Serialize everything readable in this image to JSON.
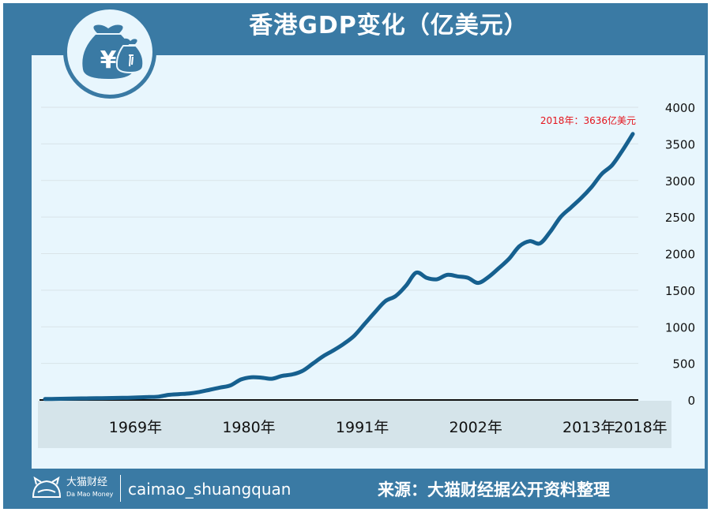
{
  "header": {
    "title": "香港GDP变化（亿美元）"
  },
  "badge": {
    "icon": "money-bag-icon",
    "symbol": "¥"
  },
  "footer": {
    "brand_cn": "大猫财经",
    "brand_en": "Da Mao Money",
    "handle": "caimao_shuangquan",
    "source": "来源：大猫财经据公开资料整理"
  },
  "colors": {
    "frame": "#3a7aa4",
    "panel": "#e8f6fd",
    "line": "#16608f",
    "annotation": "#e4141d"
  },
  "chart_data": {
    "type": "line",
    "title": "香港GDP变化（亿美元）",
    "xlabel": "",
    "ylabel": "",
    "ylim": [
      0,
      4000
    ],
    "xlim": [
      1961,
      2018
    ],
    "grid": true,
    "legend": "none",
    "y_ticks": [
      "0",
      "500",
      "1000",
      "1500",
      "2000",
      "2500",
      "3000",
      "3500",
      "4000"
    ],
    "x_ticks": [
      {
        "year": 1969,
        "label": "1969年"
      },
      {
        "year": 1980,
        "label": "1980年"
      },
      {
        "year": 1991,
        "label": "1991年"
      },
      {
        "year": 2002,
        "label": "2002年"
      },
      {
        "year": 2013,
        "label": "2013年"
      },
      {
        "year": 2018,
        "label": "2018年"
      }
    ],
    "annotation": {
      "year": 2018,
      "value": 3636,
      "text": "2018年：3636亿美元"
    },
    "series": [
      {
        "x": [
          1961,
          1962,
          1963,
          1964,
          1965,
          1966,
          1967,
          1968,
          1969,
          1970,
          1971,
          1972,
          1973,
          1974,
          1975,
          1976,
          1977,
          1978,
          1979,
          1980,
          1981,
          1982,
          1983,
          1984,
          1985,
          1986,
          1987,
          1988,
          1989,
          1990,
          1991,
          1992,
          1993,
          1994,
          1995,
          1996,
          1997,
          1998,
          1999,
          2000,
          2001,
          2002,
          2003,
          2004,
          2005,
          2006,
          2007,
          2008,
          2009,
          2010,
          2011,
          2012,
          2013,
          2014,
          2015,
          2016,
          2017,
          2018
        ],
        "values": [
          13,
          15,
          17,
          20,
          22,
          24,
          26,
          28,
          30,
          35,
          40,
          45,
          70,
          80,
          90,
          110,
          140,
          170,
          200,
          280,
          310,
          305,
          290,
          330,
          350,
          400,
          500,
          600,
          680,
          770,
          880,
          1040,
          1200,
          1350,
          1420,
          1560,
          1740,
          1670,
          1650,
          1710,
          1690,
          1670,
          1600,
          1680,
          1800,
          1930,
          2100,
          2170,
          2140,
          2300,
          2500,
          2630,
          2760,
          2910,
          3090,
          3210,
          3410,
          3636
        ]
      }
    ]
  }
}
